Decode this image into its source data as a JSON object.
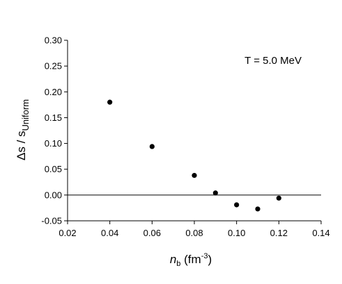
{
  "chart_data": {
    "type": "scatter",
    "title": "",
    "annotation": "T = 5.0 MeV",
    "xlabel": {
      "symbol": "n",
      "subscript": "b",
      "unit_open": " (fm",
      "unit_exp": "-3",
      "unit_close": ")"
    },
    "ylabel": {
      "prefix": "Δs / s",
      "subscript": "Uniform"
    },
    "xlim": [
      0.02,
      0.14
    ],
    "ylim": [
      -0.05,
      0.3
    ],
    "xticks": [
      "0.02",
      "0.04",
      "0.06",
      "0.08",
      "0.10",
      "0.12",
      "0.14"
    ],
    "yticks": [
      "-0.05",
      "0.00",
      "0.05",
      "0.10",
      "0.15",
      "0.20",
      "0.25",
      "0.30"
    ],
    "zero_line": true,
    "grid": false,
    "x": [
      0.04,
      0.06,
      0.08,
      0.09,
      0.1,
      0.11,
      0.12
    ],
    "y": [
      0.18,
      0.094,
      0.038,
      0.004,
      -0.019,
      -0.027,
      -0.006
    ],
    "marker_color": "#000000"
  }
}
